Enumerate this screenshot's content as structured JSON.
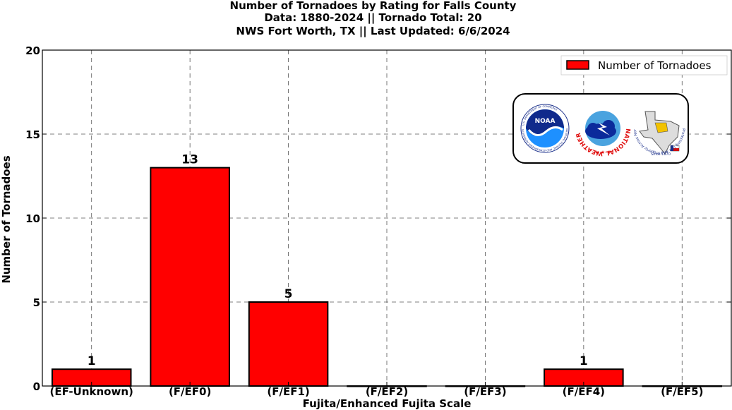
{
  "chart_data": {
    "type": "bar",
    "title_lines": [
      "Number of Tornadoes by Rating for Falls County",
      "Data: 1880-2024 || Tornado Total: 20",
      "NWS Fort Worth, TX || Last Updated: 6/6/2024"
    ],
    "xlabel": "Fujita/Enhanced Fujita Scale",
    "ylabel": "Number of Tornadoes",
    "categories": [
      "(EF-Unknown)",
      "(F/EF0)",
      "(F/EF1)",
      "(F/EF2)",
      "(F/EF3)",
      "(F/EF4)",
      "(F/EF5)"
    ],
    "series": [
      {
        "name": "Number of Tornadoes",
        "values": [
          1,
          13,
          5,
          0,
          0,
          1,
          0
        ]
      }
    ],
    "data_labels": [
      "1",
      "13",
      "5",
      "",
      "",
      "1",
      ""
    ],
    "ylim": [
      0,
      20
    ],
    "yticks": [
      0,
      5,
      10,
      15,
      20
    ],
    "grid": true,
    "legend": "top-right",
    "bar_color": "#ff0000"
  },
  "logos": {
    "noaa": "NOAA",
    "nws_ring": "NATIONAL WEATHER SERVICE",
    "noaa_ring": "NATIONAL OCEANIC AND ATMOSPHERIC ADMINISTRATION",
    "doc_ring": "U.S. DEPARTMENT OF COMMERCE",
    "fw_ring": "Protecting Life And Property Across North Texas",
    "since": "Since 1870"
  }
}
